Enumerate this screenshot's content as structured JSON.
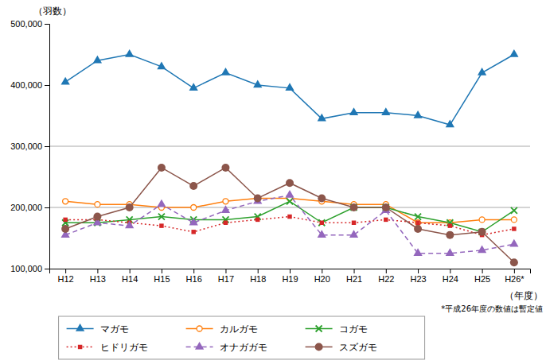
{
  "chart_data": {
    "type": "line",
    "categories": [
      "H12",
      "H13",
      "H14",
      "H15",
      "H16",
      "H17",
      "H18",
      "H19",
      "H20",
      "H21",
      "H22",
      "H23",
      "H24",
      "H25",
      "H26*"
    ],
    "series": [
      {
        "name": "マガモ",
        "marker": "triangle-up",
        "line_style": "solid",
        "values": [
          405000,
          440000,
          450000,
          430000,
          395000,
          420000,
          400000,
          395000,
          345000,
          355000,
          355000,
          350000,
          335000,
          420000,
          450000
        ]
      },
      {
        "name": "カルガモ",
        "marker": "circle-open",
        "line_style": "solid",
        "values": [
          210000,
          205000,
          205000,
          200000,
          200000,
          210000,
          215000,
          215000,
          210000,
          205000,
          205000,
          175000,
          175000,
          180000,
          180000
        ]
      },
      {
        "name": "コガモ",
        "marker": "x",
        "line_style": "solid",
        "values": [
          175000,
          175000,
          180000,
          185000,
          180000,
          180000,
          185000,
          210000,
          175000,
          200000,
          200000,
          185000,
          175000,
          160000,
          195000
        ]
      },
      {
        "name": "ヒドリガモ",
        "marker": "square",
        "line_style": "dotted",
        "values": [
          180000,
          180000,
          175000,
          170000,
          160000,
          175000,
          180000,
          185000,
          175000,
          175000,
          180000,
          175000,
          170000,
          155000,
          165000
        ]
      },
      {
        "name": "オナガガモ",
        "marker": "triangle-up",
        "line_style": "dashed",
        "values": [
          155000,
          175000,
          170000,
          205000,
          175000,
          195000,
          210000,
          220000,
          155000,
          155000,
          195000,
          125000,
          125000,
          130000,
          140000
        ]
      },
      {
        "name": "スズガモ",
        "marker": "circle",
        "line_style": "solid",
        "values": [
          165000,
          185000,
          200000,
          265000,
          235000,
          265000,
          215000,
          240000,
          215000,
          200000,
          200000,
          165000,
          155000,
          160000,
          110000
        ]
      }
    ],
    "ylabel": "（羽数）",
    "xlabel": "（年度）",
    "annotations": [
      "*平成26年度の数値は暫定値"
    ],
    "ylim": [
      100000,
      500000
    ],
    "yticks": [
      {
        "value": 100000,
        "label": "100,000"
      },
      {
        "value": 200000,
        "label": "200,000"
      },
      {
        "value": 300000,
        "label": "300,000"
      },
      {
        "value": 400000,
        "label": "400,000"
      },
      {
        "value": 500000,
        "label": "500,000"
      }
    ],
    "hlines": [
      300000,
      200000
    ],
    "grid": false,
    "legend": "bottom"
  }
}
